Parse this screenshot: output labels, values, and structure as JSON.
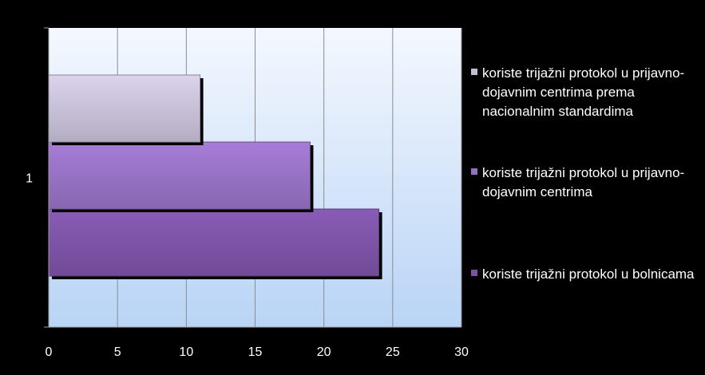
{
  "chart_data": {
    "type": "bar",
    "orientation": "horizontal",
    "categories": [
      "1"
    ],
    "series": [
      {
        "name": "koriste trijažni protokol u bolnicama",
        "values": [
          24
        ],
        "color": "#7a52a3"
      },
      {
        "name": "koriste trijažni protokol u prijavno-dojavnim centrima",
        "values": [
          19
        ],
        "color": "#9470c0"
      },
      {
        "name": "koriste trijažni protokol u prijavno-dojavnim centrima prema nacionalnim standardima",
        "values": [
          11
        ],
        "color": "#c4bcd3"
      }
    ],
    "xlim": [
      0,
      30
    ],
    "xticks": [
      "0",
      "5",
      "10",
      "15",
      "20",
      "25",
      "30"
    ],
    "grid": true,
    "legend_position": "right",
    "legend_order": [
      2,
      1,
      0
    ]
  }
}
